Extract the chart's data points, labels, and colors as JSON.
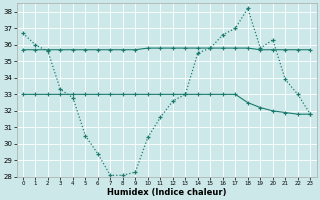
{
  "xlabel": "Humidex (Indice chaleur)",
  "xlim": [
    -0.5,
    23.5
  ],
  "ylim": [
    28,
    38.5
  ],
  "yticks": [
    28,
    29,
    30,
    31,
    32,
    33,
    34,
    35,
    36,
    37,
    38
  ],
  "xticks": [
    0,
    1,
    2,
    3,
    4,
    5,
    6,
    7,
    8,
    9,
    10,
    11,
    12,
    13,
    14,
    15,
    16,
    17,
    18,
    19,
    20,
    21,
    22,
    23
  ],
  "line_color": "#1a7a6e",
  "bg_color": "#cde8e8",
  "grid_color": "#ffffff",
  "line1_x": [
    0,
    1,
    2,
    3,
    4,
    5,
    6,
    7,
    8,
    9,
    10,
    11,
    12,
    13,
    14,
    15,
    16,
    17,
    18,
    19,
    20,
    21,
    22,
    23
  ],
  "line1_y": [
    36.7,
    36.0,
    35.6,
    33.3,
    32.8,
    30.5,
    29.4,
    28.1,
    28.1,
    28.3,
    30.4,
    31.6,
    32.6,
    33.0,
    35.5,
    35.8,
    36.6,
    37.0,
    38.2,
    35.8,
    36.3,
    33.9,
    33.0,
    31.8
  ],
  "line2_x": [
    0,
    1,
    2,
    3,
    4,
    5,
    6,
    7,
    8,
    9,
    10,
    11,
    12,
    13,
    14,
    15,
    16,
    17,
    18,
    19,
    20,
    21,
    22,
    23
  ],
  "line2_y": [
    35.7,
    35.7,
    35.7,
    35.7,
    35.7,
    35.7,
    35.7,
    35.7,
    35.7,
    35.7,
    35.8,
    35.8,
    35.8,
    35.8,
    35.8,
    35.8,
    35.8,
    35.8,
    35.8,
    35.7,
    35.7,
    35.7,
    35.7,
    35.7
  ],
  "line3_x": [
    0,
    1,
    2,
    3,
    4,
    5,
    6,
    7,
    8,
    9,
    10,
    11,
    12,
    13,
    14,
    15,
    16,
    17,
    18,
    19,
    20,
    21,
    22,
    23
  ],
  "line3_y": [
    33.0,
    33.0,
    33.0,
    33.0,
    33.0,
    33.0,
    33.0,
    33.0,
    33.0,
    33.0,
    33.0,
    33.0,
    33.0,
    33.0,
    33.0,
    33.0,
    33.0,
    33.0,
    32.5,
    32.2,
    32.0,
    31.9,
    31.8,
    31.8
  ]
}
